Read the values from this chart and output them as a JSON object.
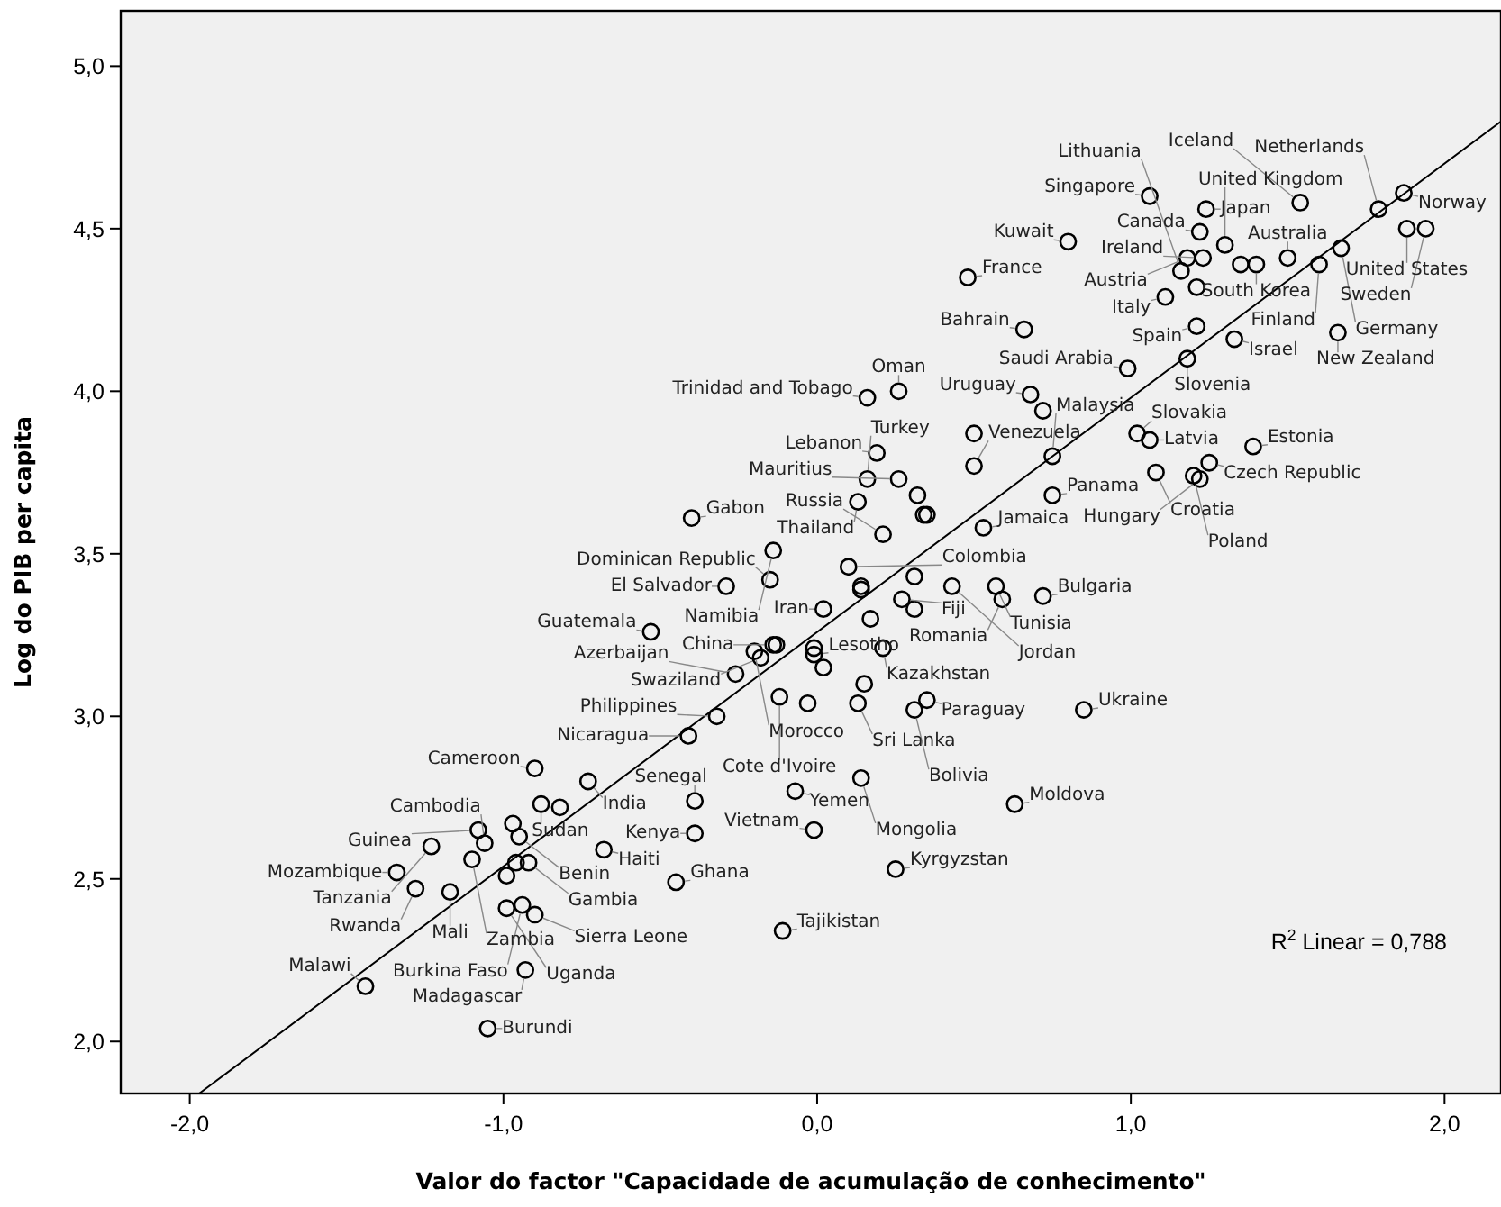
{
  "chart_data": {
    "type": "scatter",
    "xlabel": "Valor do factor \"Capacidade de acumulação de conhecimento\"",
    "ylabel": "Log do PIB per capita",
    "xlim": [
      -2.22,
      2.18
    ],
    "ylim": [
      1.84,
      5.17
    ],
    "xticks": [
      {
        "value": -2,
        "label": "-2,0"
      },
      {
        "value": -1,
        "label": "-1,0"
      },
      {
        "value": 0,
        "label": "0,0"
      },
      {
        "value": 1,
        "label": "1,0"
      },
      {
        "value": 2,
        "label": "2,0"
      }
    ],
    "yticks": [
      {
        "value": 2,
        "label": "2,0"
      },
      {
        "value": 2.5,
        "label": "2,5"
      },
      {
        "value": 3,
        "label": "3,0"
      },
      {
        "value": 3.5,
        "label": "3,5"
      },
      {
        "value": 4,
        "label": "4,0"
      },
      {
        "value": 4.5,
        "label": "4,5"
      },
      {
        "value": 5,
        "label": "5,0"
      }
    ],
    "grid": false,
    "series": [
      {
        "color": "#000000",
        "marker": "circle",
        "x": [
          1.06,
          1.24,
          1.54,
          1.79,
          1.87,
          1.88,
          1.94,
          0.8,
          1.22,
          1.3,
          1.18,
          1.23,
          1.35,
          1.4,
          1.5,
          1.67,
          1.6,
          0.48,
          1.16,
          1.21,
          1.11,
          0.66,
          1.21,
          1.33,
          1.66,
          0.99,
          1.18,
          0.16,
          0.26,
          0.68,
          0.72,
          0.5,
          1.02,
          1.06,
          1.39,
          0.5,
          0.75,
          1.25,
          1.2,
          1.22,
          1.08,
          0.75,
          0.16,
          0.13,
          0.26,
          0.32,
          0.34,
          0.35,
          0.53,
          0.21,
          0.19,
          0.1,
          0.14,
          0.14,
          0.31,
          0.43,
          0.57,
          0.59,
          0.72,
          0.27,
          0.31,
          0.02,
          0.17,
          0.21,
          -0.01,
          -0.01,
          0.02,
          0.15,
          -0.03,
          0.13,
          0.31,
          0.35,
          0.85,
          0.14,
          -0.07,
          0.63,
          -0.01,
          0.25,
          -0.11,
          -0.14,
          -0.29,
          -0.15,
          -0.53,
          -0.2,
          -0.18,
          -0.14,
          -0.13,
          -0.26,
          -0.12,
          -0.32,
          -0.41,
          -0.9,
          -0.73,
          -0.39,
          -0.88,
          -0.82,
          -0.39,
          -1.08,
          -1.06,
          -1.1,
          -0.97,
          -0.95,
          -1.23,
          -0.68,
          -0.96,
          -0.92,
          -0.99,
          -0.45,
          -1.34,
          -1.28,
          -1.17,
          -0.99,
          -0.94,
          -0.9,
          -0.93,
          -1.44,
          -1.05,
          -0.4
        ],
        "values": [
          4.6,
          4.56,
          4.58,
          4.56,
          4.61,
          4.5,
          4.5,
          4.46,
          4.49,
          4.45,
          4.41,
          4.41,
          4.39,
          4.39,
          4.41,
          4.44,
          4.39,
          4.35,
          4.37,
          4.32,
          4.29,
          4.19,
          4.2,
          4.16,
          4.18,
          4.07,
          4.1,
          3.98,
          4.0,
          3.99,
          3.94,
          3.87,
          3.87,
          3.85,
          3.83,
          3.77,
          3.8,
          3.78,
          3.74,
          3.73,
          3.75,
          3.68,
          3.73,
          3.66,
          3.73,
          3.68,
          3.62,
          3.62,
          3.58,
          3.56,
          3.81,
          3.46,
          3.4,
          3.39,
          3.43,
          3.4,
          3.4,
          3.36,
          3.37,
          3.36,
          3.33,
          3.33,
          3.3,
          3.21,
          3.21,
          3.19,
          3.15,
          3.1,
          3.04,
          3.04,
          3.02,
          3.05,
          3.02,
          2.81,
          2.77,
          2.73,
          2.65,
          2.53,
          2.34,
          3.51,
          3.4,
          3.42,
          3.26,
          3.2,
          3.18,
          3.22,
          3.22,
          3.13,
          3.06,
          3.0,
          2.94,
          2.84,
          2.8,
          2.74,
          2.73,
          2.72,
          2.64,
          2.65,
          2.61,
          2.56,
          2.67,
          2.63,
          2.6,
          2.59,
          2.55,
          2.55,
          2.51,
          2.49,
          2.52,
          2.47,
          2.46,
          2.41,
          2.42,
          2.39,
          2.22,
          2.17,
          2.04,
          3.61
        ]
      },
      {
        "type": "line",
        "color": "#000000",
        "x": [
          -1.97,
          2.18
        ],
        "values": [
          1.84,
          4.83
        ]
      }
    ],
    "annotations": [
      {
        "text": "United States",
        "x": 1.88,
        "y": 4.5
      },
      {
        "text": "United Kingdom",
        "x": 1.3,
        "y": 4.45
      },
      {
        "text": "Netherlands",
        "x": 1.79,
        "y": 4.56
      },
      {
        "text": "Japan",
        "x": 1.24,
        "y": 4.56
      },
      {
        "text": "Norway",
        "x": 1.87,
        "y": 4.61
      },
      {
        "text": "Singapore",
        "x": 1.06,
        "y": 4.6
      },
      {
        "text": "Iceland",
        "x": 1.54,
        "y": 4.58
      },
      {
        "text": "Ireland",
        "x": 1.23,
        "y": 4.41
      },
      {
        "text": "Sweden",
        "x": 1.94,
        "y": 4.5
      },
      {
        "text": "Canada",
        "x": 1.22,
        "y": 4.49
      },
      {
        "text": "Kuwait",
        "x": 0.8,
        "y": 4.46
      },
      {
        "text": "Austria",
        "x": 1.18,
        "y": 4.41
      },
      {
        "text": "France",
        "x": 0.48,
        "y": 4.35
      },
      {
        "text": "Finland",
        "x": 1.6,
        "y": 4.39
      },
      {
        "text": "Italy",
        "x": 1.11,
        "y": 4.29
      },
      {
        "text": "Bahrain",
        "x": 0.66,
        "y": 4.19
      },
      {
        "text": "Germany",
        "x": 1.67,
        "y": 4.44
      },
      {
        "text": "Australia",
        "x": 1.5,
        "y": 4.41
      },
      {
        "text": "Israel",
        "x": 1.33,
        "y": 4.16
      },
      {
        "text": "Spain",
        "x": 1.21,
        "y": 4.2
      },
      {
        "text": "New Zealand",
        "x": 1.66,
        "y": 4.18
      },
      {
        "text": "Trinidad and Tobago",
        "x": 0.16,
        "y": 3.98
      },
      {
        "text": "Saudi Arabia",
        "x": 0.99,
        "y": 4.07
      },
      {
        "text": "Uruguay",
        "x": 0.68,
        "y": 3.99
      },
      {
        "text": "Slovenia",
        "x": 1.18,
        "y": 4.1
      },
      {
        "text": "South Korea",
        "x": 1.4,
        "y": 4.39
      },
      {
        "text": "Oman",
        "x": 0.26,
        "y": 4.0
      },
      {
        "text": "Czech Republic",
        "x": 1.25,
        "y": 3.78
      },
      {
        "text": "Lebanon",
        "x": 0.19,
        "y": 3.81
      },
      {
        "text": "Venezuela",
        "x": 0.5,
        "y": 3.77
      },
      {
        "text": "Slovakia",
        "x": 1.02,
        "y": 3.87
      },
      {
        "text": "Latvia",
        "x": 1.06,
        "y": 3.85
      },
      {
        "text": "Estonia",
        "x": 1.39,
        "y": 3.83
      },
      {
        "text": "Gabon",
        "x": -0.4,
        "y": 3.61
      },
      {
        "text": "Mauritius",
        "x": 0.26,
        "y": 3.73
      },
      {
        "text": "Turkey",
        "x": 0.16,
        "y": 3.73
      },
      {
        "text": "Panama",
        "x": 0.75,
        "y": 3.68
      },
      {
        "text": "Croatia",
        "x": 1.08,
        "y": 3.75
      },
      {
        "text": "Hungary",
        "x": 1.22,
        "y": 3.73
      },
      {
        "text": "Thailand",
        "x": 0.13,
        "y": 3.66
      },
      {
        "text": "Poland",
        "x": 1.2,
        "y": 3.74
      },
      {
        "text": "Lithuania",
        "x": 1.16,
        "y": 4.37
      },
      {
        "text": "Dominican Republic",
        "x": -0.15,
        "y": 3.42
      },
      {
        "text": "Jamaica",
        "x": 0.53,
        "y": 3.58
      },
      {
        "text": "Malaysia",
        "x": 0.75,
        "y": 3.8
      },
      {
        "text": "Russia",
        "x": 0.21,
        "y": 3.56
      },
      {
        "text": "Namibia",
        "x": -0.14,
        "y": 3.51
      },
      {
        "text": "Colombia",
        "x": 0.1,
        "y": 3.46
      },
      {
        "text": "Tunisia",
        "x": 0.57,
        "y": 3.4
      },
      {
        "text": "Romania",
        "x": 0.59,
        "y": 3.36
      },
      {
        "text": "El Salvador",
        "x": -0.29,
        "y": 3.4
      },
      {
        "text": "Fiji",
        "x": 0.27,
        "y": 3.36
      },
      {
        "text": "Bulgaria",
        "x": 0.72,
        "y": 3.37
      },
      {
        "text": "Guatemala",
        "x": -0.53,
        "y": 3.26
      },
      {
        "text": "China",
        "x": -0.14,
        "y": 3.22
      },
      {
        "text": "Iran",
        "x": 0.02,
        "y": 3.33
      },
      {
        "text": "Kazakhstan",
        "x": 0.21,
        "y": 3.21
      },
      {
        "text": "Jordan",
        "x": 0.43,
        "y": 3.4
      },
      {
        "text": "Swaziland",
        "x": -0.18,
        "y": 3.18
      },
      {
        "text": "Morocco",
        "x": -0.2,
        "y": 3.2
      },
      {
        "text": "Azerbaijan",
        "x": -0.26,
        "y": 3.13
      },
      {
        "text": "Cote d'Ivoire",
        "x": -0.12,
        "y": 3.06
      },
      {
        "text": "Paraguay",
        "x": 0.35,
        "y": 3.05
      },
      {
        "text": "Ukraine",
        "x": 0.85,
        "y": 3.02
      },
      {
        "text": "Philippines",
        "x": -0.32,
        "y": 3.0
      },
      {
        "text": "Nicaragua",
        "x": -0.41,
        "y": 2.94
      },
      {
        "text": "Sri Lanka",
        "x": 0.13,
        "y": 3.04
      },
      {
        "text": "Bolivia",
        "x": 0.31,
        "y": 3.02
      },
      {
        "text": "India",
        "x": -0.73,
        "y": 2.8
      },
      {
        "text": "Cameroon",
        "x": -0.9,
        "y": 2.84
      },
      {
        "text": "Yemen",
        "x": -0.07,
        "y": 2.77
      },
      {
        "text": "Vietnam",
        "x": -0.01,
        "y": 2.65
      },
      {
        "text": "Cambodia",
        "x": -1.06,
        "y": 2.61
      },
      {
        "text": "Mongolia",
        "x": 0.14,
        "y": 2.81
      },
      {
        "text": "Moldova",
        "x": 0.63,
        "y": 2.73
      },
      {
        "text": "Sudan",
        "x": -0.88,
        "y": 2.73
      },
      {
        "text": "Senegal",
        "x": -0.39,
        "y": 2.74
      },
      {
        "text": "Guinea",
        "x": -1.08,
        "y": 2.65
      },
      {
        "text": "Kenya",
        "x": -0.39,
        "y": 2.64
      },
      {
        "text": "Zambia",
        "x": -1.1,
        "y": 2.56
      },
      {
        "text": "Tanzania",
        "x": -1.23,
        "y": 2.6
      },
      {
        "text": "Benin",
        "x": -0.95,
        "y": 2.63
      },
      {
        "text": "Haiti",
        "x": -0.68,
        "y": 2.59
      },
      {
        "text": "Kyrgyzstan",
        "x": 0.25,
        "y": 2.53
      },
      {
        "text": "Ghana",
        "x": -0.45,
        "y": 2.49
      },
      {
        "text": "Lesotho",
        "x": -0.01,
        "y": 3.19
      },
      {
        "text": "Mozambique",
        "x": -1.34,
        "y": 2.52
      },
      {
        "text": "Gambia",
        "x": -0.92,
        "y": 2.55
      },
      {
        "text": "Rwanda",
        "x": -1.28,
        "y": 2.47
      },
      {
        "text": "Mali",
        "x": -1.17,
        "y": 2.46
      },
      {
        "text": "Sierra Leone",
        "x": -0.9,
        "y": 2.39
      },
      {
        "text": "Tajikistan",
        "x": -0.11,
        "y": 2.34
      },
      {
        "text": "Burkina Faso",
        "x": -0.94,
        "y": 2.42
      },
      {
        "text": "Uganda",
        "x": -0.99,
        "y": 2.41
      },
      {
        "text": "Madagascar",
        "x": -0.93,
        "y": 2.22
      },
      {
        "text": "Malawi",
        "x": -1.44,
        "y": 2.17
      },
      {
        "text": "Burundi",
        "x": -1.05,
        "y": 2.04
      },
      "R$^{2}$ Linear = 0,788"
    ]
  }
}
